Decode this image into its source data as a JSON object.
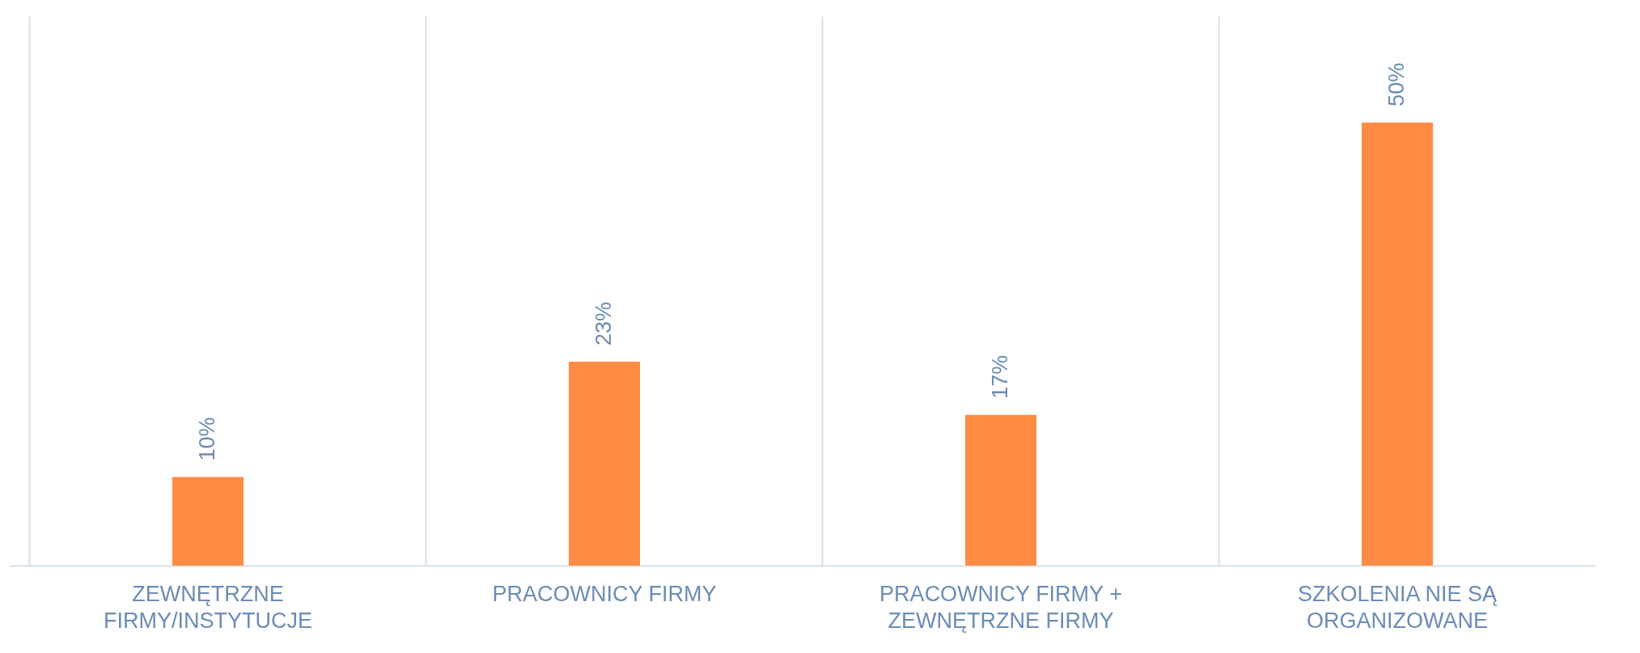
{
  "chart_data": {
    "type": "bar",
    "categories": [
      "ZEWNĘTRZNE FIRMY/INSTYTUCJE",
      "PRACOWNICY FIRMY",
      "PRACOWNICY FIRMY + ZEWNĘTRZNE FIRMY",
      "SZKOLENIA NIE SĄ ORGANIZOWANE"
    ],
    "values": [
      10,
      23,
      17,
      50
    ],
    "value_labels": [
      "10%",
      "23%",
      "17%",
      "50%"
    ],
    "color": "#ff8c42",
    "grid": "x"
  }
}
